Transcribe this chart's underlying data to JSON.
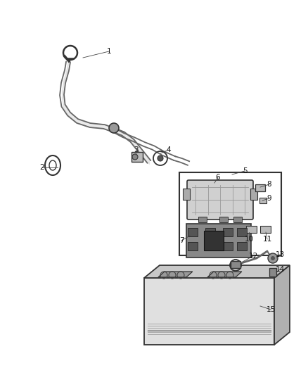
{
  "background_color": "#ffffff",
  "fig_width": 4.38,
  "fig_height": 5.33,
  "dpi": 100,
  "cable_color": "#666666",
  "line_color": "#333333",
  "label_color": "#111111",
  "label_fontsize": 7.5,
  "leader_lw": 0.6
}
